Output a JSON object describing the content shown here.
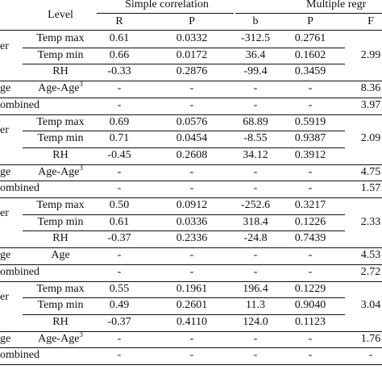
{
  "header": {
    "group1": "Simple correlation",
    "group2": "Multiple regr",
    "level": "Level",
    "col_r": "R",
    "col_p1": "P",
    "col_b": "b",
    "col_p2": "P",
    "col_f": "F"
  },
  "blocks": [
    {
      "rows": [
        {
          "left": "er",
          "level": "Temp max",
          "r": "0.61",
          "p1": "0.0332",
          "b": "-312.5",
          "p2": "0.2761"
        },
        {
          "left": "",
          "level": "Temp min",
          "r": "0.66",
          "p1": "0.0172",
          "b": "36.4",
          "p2": "0.1602"
        },
        {
          "left": "",
          "level": "RH",
          "r": "-0.33",
          "p1": "0.2876",
          "b": "-99.4",
          "p2": "0.3459"
        }
      ],
      "f": "2.99",
      "age": {
        "left": "ge",
        "level": "Age-Age",
        "sup": "3",
        "r": "-",
        "p1": "-",
        "b": "-",
        "p2": "-",
        "f": "8.36"
      },
      "combined": {
        "left": "ombined",
        "r": "-",
        "p1": "-",
        "b": "-",
        "p2": "-",
        "f": "3.97"
      }
    },
    {
      "rows": [
        {
          "left": "er",
          "level": "Temp max",
          "r": "0.69",
          "p1": "0.0576",
          "b": "68.89",
          "p2": "0.5919"
        },
        {
          "left": "",
          "level": "Temp min",
          "r": "0.71",
          "p1": "0.0454",
          "b": "-8.55",
          "p2": "0.9387"
        },
        {
          "left": "",
          "level": "RH",
          "r": "-0.45",
          "p1": "0.2608",
          "b": "34.12",
          "p2": "0.3912"
        }
      ],
      "f": "2.09",
      "age": {
        "left": "ge",
        "level": "Age-Age",
        "sup": "3",
        "r": "-",
        "p1": "-",
        "b": "-",
        "p2": "-",
        "f": "4.75"
      },
      "combined": {
        "left": "ombined",
        "r": "-",
        "p1": "-",
        "b": "-",
        "p2": "-",
        "f": "1.57"
      }
    },
    {
      "rows": [
        {
          "left": "er",
          "level": "Temp max",
          "r": "0.50",
          "p1": "0.0912",
          "b": "-252.6",
          "p2": "0.3217"
        },
        {
          "left": "",
          "level": "Temp min",
          "r": "0.61",
          "p1": "0.0336",
          "b": "318.4",
          "p2": "0.1226"
        },
        {
          "left": "",
          "level": "RH",
          "r": "-0.37",
          "p1": "0.2336",
          "b": "-24.8",
          "p2": "0.7439"
        }
      ],
      "f": "2.33",
      "age": {
        "left": "ge",
        "level": "Age",
        "sup": "",
        "r": "-",
        "p1": "-",
        "b": "-",
        "p2": "-",
        "f": "4.53"
      },
      "combined": {
        "left": "ombined",
        "r": "-",
        "p1": "-",
        "b": "-",
        "p2": "-",
        "f": "2.72"
      }
    },
    {
      "rows": [
        {
          "left": "er",
          "level": "Temp max",
          "r": "0.55",
          "p1": "0.1961",
          "b": "196.4",
          "p2": "0.1229"
        },
        {
          "left": "",
          "level": "Temp min",
          "r": "0.49",
          "p1": "0.2601",
          "b": "11.3",
          "p2": "0.9040"
        },
        {
          "left": "",
          "level": "RH",
          "r": "-0.37",
          "p1": "0.4110",
          "b": "124.0",
          "p2": "0.1123"
        }
      ],
      "f": "3.04",
      "age": {
        "left": "ge",
        "level": "Age-Age",
        "sup": "3",
        "r": "-",
        "p1": "-",
        "b": "-",
        "p2": "-",
        "f": "1.76"
      },
      "combined": {
        "left": "ombined",
        "r": "-",
        "p1": "-",
        "b": "-",
        "p2": "-",
        "f": "-"
      }
    }
  ]
}
